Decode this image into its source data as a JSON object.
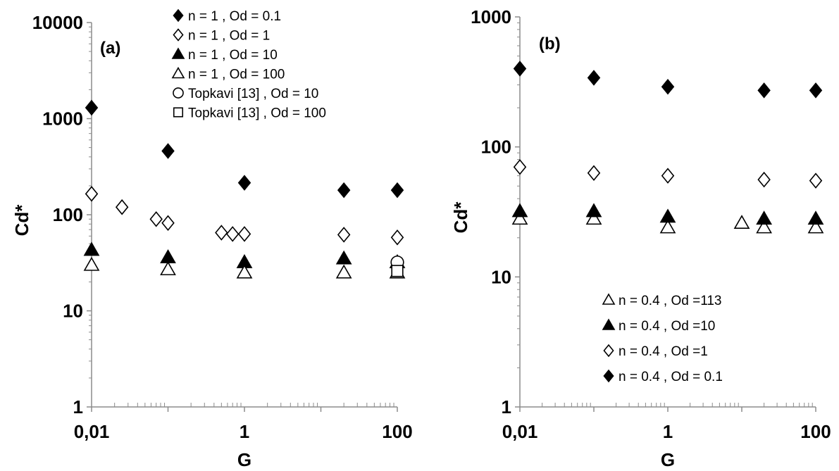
{
  "chart_data": [
    {
      "type": "scatter",
      "panel_label": "(a)",
      "xlabel": "G",
      "ylabel": "Cd*",
      "xscale": "log",
      "yscale": "log",
      "xlim": [
        0.01,
        100
      ],
      "ylim": [
        1,
        10000
      ],
      "x_tick_labels": [
        "0,01",
        "1",
        "100"
      ],
      "y_tick_labels": [
        "1",
        "10",
        "100",
        "1000",
        "10000"
      ],
      "legend_position": "top-right",
      "series": [
        {
          "name": "n = 1 , Od = 0.1",
          "marker": "diamond-filled",
          "x": [
            0.01,
            0.1,
            1,
            20,
            100
          ],
          "y": [
            1300,
            460,
            215,
            180,
            180
          ]
        },
        {
          "name": "n = 1 , Od = 1",
          "marker": "diamond-open",
          "x": [
            0.01,
            0.025,
            0.07,
            0.1,
            0.5,
            0.7,
            1,
            20,
            100
          ],
          "y": [
            165,
            120,
            90,
            82,
            65,
            63,
            63,
            62,
            58
          ]
        },
        {
          "name": "n = 1 , Od = 10",
          "marker": "triangle-filled",
          "x": [
            0.01,
            0.1,
            1,
            20,
            100
          ],
          "y": [
            43,
            36,
            32,
            35,
            32
          ]
        },
        {
          "name": "n = 1 , Od = 100",
          "marker": "triangle-open",
          "x": [
            0.01,
            0.1,
            1,
            20,
            100
          ],
          "y": [
            30,
            27,
            25,
            25,
            25
          ]
        },
        {
          "name": "Topkavi [13] , Od = 10",
          "marker": "circle-open",
          "x": [
            100
          ],
          "y": [
            32
          ]
        },
        {
          "name": "Topkavi [13] , Od = 100",
          "marker": "square-open",
          "x": [
            100
          ],
          "y": [
            26
          ]
        }
      ]
    },
    {
      "type": "scatter",
      "panel_label": "(b)",
      "xlabel": "G",
      "ylabel": "Cd*",
      "xscale": "log",
      "yscale": "log",
      "xlim": [
        0.01,
        100
      ],
      "ylim": [
        1,
        1000
      ],
      "x_tick_labels": [
        "0,01",
        "1",
        "100"
      ],
      "y_tick_labels": [
        "1",
        "10",
        "100",
        "1000"
      ],
      "legend_position": "bottom-right",
      "series": [
        {
          "name": "n = 0.4 ,  Od =113",
          "marker": "triangle-open",
          "x": [
            0.01,
            0.1,
            1,
            10,
            20,
            100
          ],
          "y": [
            28,
            28,
            24,
            26,
            24,
            24
          ]
        },
        {
          "name": "n = 0.4 , Od =10",
          "marker": "triangle-filled",
          "x": [
            0.01,
            0.1,
            1,
            20,
            100
          ],
          "y": [
            32,
            32,
            29,
            28,
            28
          ]
        },
        {
          "name": "n = 0.4 , Od =1",
          "marker": "diamond-open",
          "x": [
            0.01,
            0.1,
            1,
            20,
            100
          ],
          "y": [
            70,
            63,
            60,
            56,
            55
          ]
        },
        {
          "name": "n = 0.4 , Od = 0.1",
          "marker": "diamond-filled",
          "x": [
            0.01,
            0.1,
            1,
            20,
            100
          ],
          "y": [
            400,
            340,
            290,
            272,
            272
          ]
        }
      ]
    }
  ]
}
